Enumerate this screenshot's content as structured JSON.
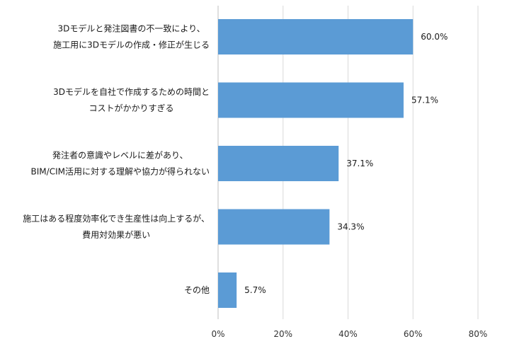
{
  "chart_data": {
    "type": "bar",
    "orientation": "horizontal",
    "categories": [
      [
        "3Dモデルと発注図書の不一致により、",
        "施工用に3Dモデルの作成・修正が生じる"
      ],
      [
        "3Dモデルを自社で作成するための時間と",
        "コストがかかりすぎる"
      ],
      [
        "発注者の意識やレベルに差があり、",
        "BIM/CIM活用に対する理解や協力が得られない"
      ],
      [
        "施工はある程度効率化でき生産性は向上するが、",
        "費用対効果が悪い"
      ],
      [
        "その他"
      ]
    ],
    "values": [
      60.0,
      57.1,
      37.1,
      34.3,
      5.7
    ],
    "data_labels": [
      "60.0%",
      "57.1%",
      "37.1%",
      "34.3%",
      "5.7%"
    ],
    "xlim": [
      0,
      80
    ],
    "x_ticks": [
      0,
      20,
      40,
      60,
      80
    ],
    "x_tick_labels": [
      "0%",
      "20%",
      "40%",
      "60%",
      "80%"
    ],
    "bar_color": "#5b9bd5",
    "grid_color": "#d9d9d9",
    "grid": true,
    "legend": false
  }
}
